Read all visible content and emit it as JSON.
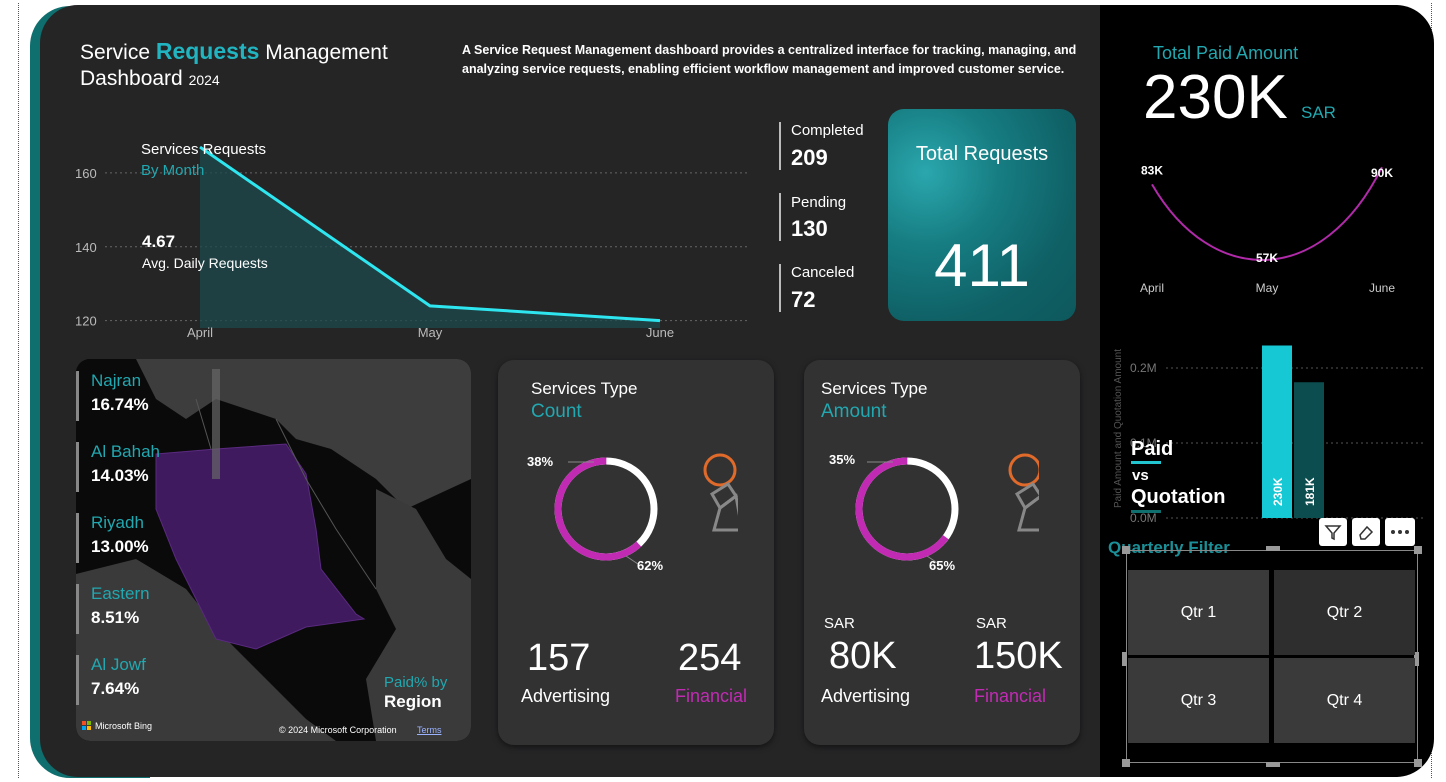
{
  "header": {
    "title_part1": "Service ",
    "title_highlight": "Requests",
    "title_part2": " Management",
    "title_line2": "Dashboard",
    "year": "2024",
    "description": "A Service Request Management dashboard provides a centralized interface for tracking, managing, and analyzing service requests, enabling efficient workflow management and improved customer service."
  },
  "monthly_chart": {
    "title": "Services Requests",
    "subtitle": "By Month",
    "avg_value": "4.67",
    "avg_label": "Avg. Daily Requests",
    "y_ticks": [
      "160",
      "140",
      "120"
    ],
    "x_ticks": [
      "April",
      "May",
      "June"
    ]
  },
  "status": {
    "completed_label": "Completed",
    "completed_value": "209",
    "pending_label": "Pending",
    "pending_value": "130",
    "canceled_label": "Canceled",
    "canceled_value": "72"
  },
  "total": {
    "label": "Total Requests",
    "value": "411"
  },
  "map": {
    "regions": [
      {
        "name": "Najran",
        "pct": "16.74%"
      },
      {
        "name": "Al Bahah",
        "pct": "14.03%"
      },
      {
        "name": "Riyadh",
        "pct": "13.00%"
      },
      {
        "name": "Eastern",
        "pct": "8.51%"
      },
      {
        "name": "Al Jowf",
        "pct": "7.64%"
      }
    ],
    "legend_line1": "Paid% by",
    "legend_line2": "Region",
    "bing": "Microsoft Bing",
    "copyright": "© 2024 Microsoft Corporation",
    "terms": "Terms"
  },
  "type_count": {
    "title": "Services Type",
    "subtitle": "Count",
    "pct_small": "38%",
    "pct_large": "62%",
    "adv_value": "157",
    "adv_label": "Advertising",
    "fin_value": "254",
    "fin_label": "Financial"
  },
  "type_amount": {
    "title": "Services Type",
    "subtitle": "Amount",
    "pct_small": "35%",
    "pct_large": "65%",
    "currency": "SAR",
    "adv_value": "80K",
    "adv_label": "Advertising",
    "fin_value": "150K",
    "fin_label": "Financial"
  },
  "paid_total": {
    "label": "Total Paid Amount",
    "value": "230K",
    "unit": "SAR"
  },
  "paid_trend": {
    "labels": [
      "83K",
      "57K",
      "90K"
    ],
    "months": [
      "April",
      "May",
      "June"
    ]
  },
  "paid_vs": {
    "axis_label": "Paid Amount and Quotation Amount",
    "y_ticks": [
      "0.2M",
      "0.1M",
      "0.0M"
    ],
    "title1": "Paid",
    "title2": "vs",
    "title3": "Quotation",
    "paid_label": "230K",
    "quote_label": "181K"
  },
  "quarter_filter": {
    "title": "Quarterly Filter",
    "buttons": [
      "Qtr 1",
      "Qtr 2",
      "Qtr 3",
      "Qtr 4"
    ]
  },
  "colors": {
    "accent_teal": "#21a8b0",
    "magenta": "#c12bb3",
    "line_cyan": "#2ee6f0",
    "orange": "#e06a2a"
  },
  "chart_data": [
    {
      "type": "area",
      "title": "Services Requests",
      "subtitle": "By Month",
      "categories": [
        "April",
        "May",
        "June"
      ],
      "values": [
        167,
        124,
        120
      ],
      "ylim": [
        118,
        170
      ],
      "grid": true
    },
    {
      "type": "pie",
      "title": "Services Type",
      "subtitle": "Count",
      "categories": [
        "Advertising",
        "Financial"
      ],
      "values": [
        38,
        62
      ]
    },
    {
      "type": "pie",
      "title": "Services Type",
      "subtitle": "Amount",
      "categories": [
        "Advertising",
        "Financial"
      ],
      "values": [
        35,
        65
      ]
    },
    {
      "type": "line",
      "categories": [
        "April",
        "May",
        "June"
      ],
      "values": [
        83,
        57,
        90
      ]
    },
    {
      "type": "bar",
      "title": "Paid vs Quotation",
      "ylabel": "Paid Amount and Quotation Amount",
      "categories": [
        "Paid",
        "Quotation"
      ],
      "values": [
        230000,
        181000
      ],
      "ylim": [
        0,
        250000
      ],
      "grid": true
    }
  ]
}
